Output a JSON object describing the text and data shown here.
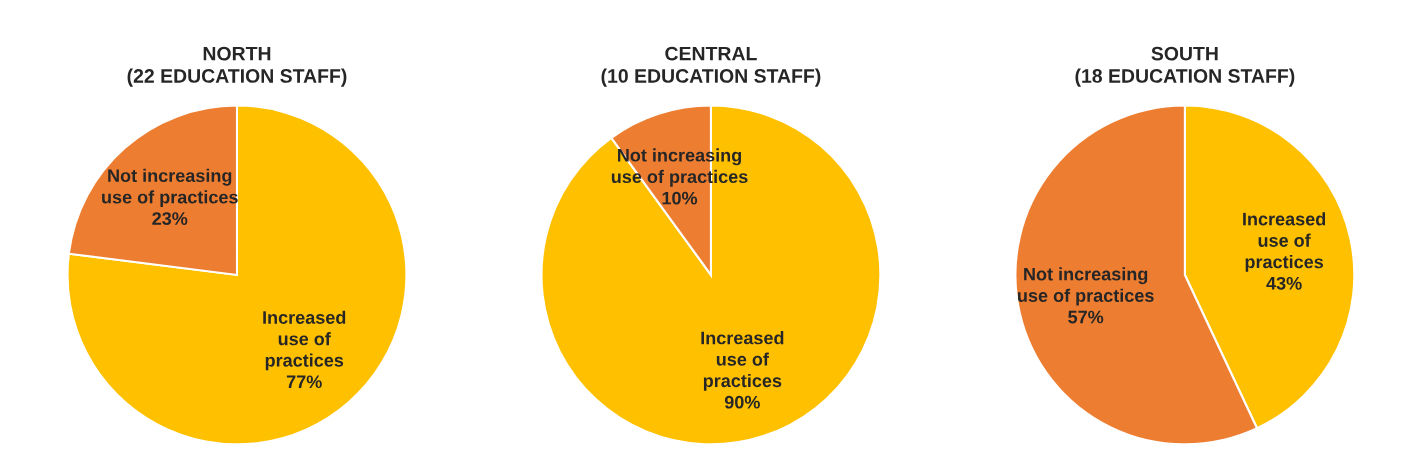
{
  "chart_data": [
    {
      "type": "pie",
      "title": "NORTH\n(22 EDUCATION STAFF)",
      "categories": [
        "Increased\nuse of\npractices",
        "Not increasing\nuse of practices"
      ],
      "values": [
        77,
        23
      ],
      "colors": [
        "#ffc000",
        "#ed7d31"
      ],
      "value_labels": [
        "77%",
        "23%"
      ]
    },
    {
      "type": "pie",
      "title": "CENTRAL\n(10 EDUCATION STAFF)",
      "categories": [
        "Increased\nuse of\npractices",
        "Not increasing\nuse of practices"
      ],
      "values": [
        90,
        10
      ],
      "colors": [
        "#ffc000",
        "#ed7d31"
      ],
      "value_labels": [
        "90%",
        "10%"
      ]
    },
    {
      "type": "pie",
      "title": "SOUTH\n(18 EDUCATION STAFF)",
      "categories": [
        "Increased\nuse of\npractices",
        "Not increasing\nuse of practices"
      ],
      "values": [
        43,
        57
      ],
      "colors": [
        "#ffc000",
        "#ed7d31"
      ],
      "value_labels": [
        "43%",
        "57%"
      ]
    }
  ]
}
